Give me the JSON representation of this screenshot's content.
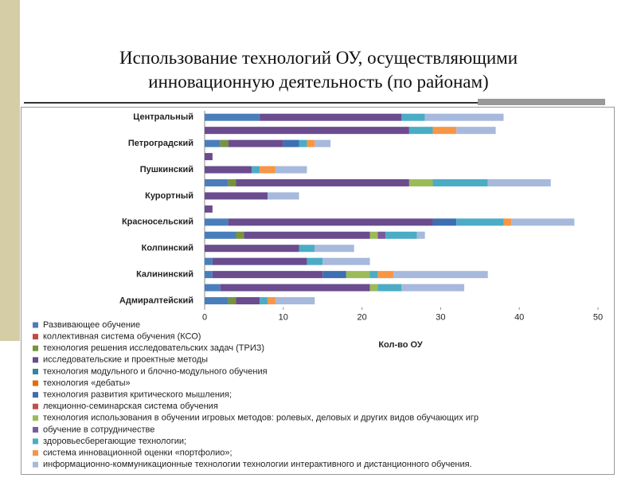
{
  "chart_data": {
    "type": "stacked-barh",
    "title": "Использование технологий ОУ, осуществляющими инновационную деятельность (по районам)",
    "x_label": "Кол-во ОУ",
    "categories": [
      "Центральный",
      null,
      "Петроградский",
      null,
      "Пушкинский",
      null,
      "Курортный",
      null,
      "Красносельский",
      null,
      "Колпинский",
      null,
      "Калининский",
      null,
      "Адмиралтейский"
    ],
    "xlim": [
      0,
      50
    ],
    "xticks": [
      0,
      10,
      20,
      30,
      40,
      50
    ],
    "grid": false,
    "series": [
      {
        "name": "Развивающее обучение",
        "color": "#4a7ebb",
        "values": [
          7,
          null,
          2,
          null,
          null,
          3,
          null,
          null,
          3,
          4,
          null,
          1,
          1,
          2,
          3
        ]
      },
      {
        "name": "коллективная система обучения (КСО)",
        "color": "#be4b48",
        "values": [
          null,
          null,
          null,
          null,
          null,
          null,
          null,
          null,
          null,
          null,
          null,
          null,
          null,
          null,
          null
        ]
      },
      {
        "name": "технология решения исследовательских задач (ТРИЗ)",
        "color": "#77933c",
        "values": [
          null,
          null,
          1,
          null,
          null,
          1,
          null,
          null,
          null,
          1,
          null,
          null,
          null,
          null,
          1
        ]
      },
      {
        "name": "исследовательские и проектные методы",
        "color": "#6b4c8e",
        "values": [
          18,
          26,
          7,
          1,
          6,
          22,
          8,
          1,
          26,
          16,
          12,
          12,
          14,
          19,
          3
        ]
      },
      {
        "name": "технология модульного и блочно-модульного обучения",
        "color": "#31859c",
        "values": [
          null,
          null,
          null,
          null,
          null,
          null,
          null,
          null,
          null,
          null,
          null,
          null,
          null,
          null,
          null
        ]
      },
      {
        "name": "технология «дебаты»",
        "color": "#e46c0a",
        "values": [
          null,
          null,
          null,
          null,
          null,
          null,
          null,
          null,
          null,
          null,
          null,
          null,
          null,
          null,
          null
        ]
      },
      {
        "name": "технология развития критического мышления;",
        "color": "#3e6fb0",
        "values": [
          null,
          null,
          2,
          null,
          null,
          null,
          null,
          null,
          3,
          null,
          null,
          null,
          3,
          null,
          null
        ]
      },
      {
        "name": "лекционно-семинарская система обучения",
        "color": "#c0504d",
        "values": [
          null,
          null,
          null,
          null,
          null,
          null,
          null,
          null,
          null,
          null,
          null,
          null,
          null,
          null,
          null
        ]
      },
      {
        "name": "технология использования в обучении игровых методов: ролевых, деловых и других видов обучающих игр",
        "color": "#9bbb59",
        "values": [
          null,
          null,
          null,
          null,
          null,
          3,
          null,
          null,
          null,
          1,
          null,
          null,
          3,
          1,
          null
        ]
      },
      {
        "name": "обучение в сотрудничестве",
        "color": "#7a5a9e",
        "values": [
          null,
          null,
          null,
          null,
          null,
          null,
          null,
          null,
          null,
          1,
          null,
          null,
          null,
          null,
          null
        ]
      },
      {
        "name": "здоровьесберегающие технологии;",
        "color": "#4bacc6",
        "values": [
          3,
          3,
          1,
          null,
          1,
          7,
          null,
          null,
          6,
          4,
          2,
          2,
          1,
          3,
          1
        ]
      },
      {
        "name": "система инновационной оценки «портфолио»;",
        "color": "#f79646",
        "values": [
          null,
          3,
          1,
          null,
          2,
          null,
          null,
          null,
          1,
          null,
          null,
          null,
          2,
          null,
          1
        ]
      },
      {
        "name": "информационно-коммуникационные технологии технологии интерактивного и дистанционного обучения.",
        "color": "#a7b9dc",
        "values": [
          10,
          5,
          2,
          null,
          4,
          8,
          4,
          null,
          8,
          1,
          5,
          6,
          12,
          8,
          5
        ]
      }
    ]
  }
}
